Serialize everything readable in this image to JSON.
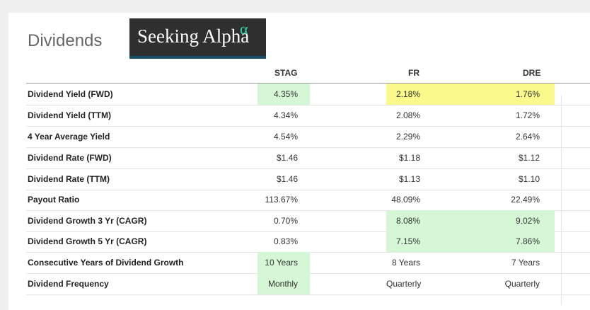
{
  "title": "Dividends",
  "logo": {
    "text": "Seeking Alpha",
    "symbol": "α"
  },
  "columns": [
    "STAG",
    "FR",
    "DRE"
  ],
  "colors": {
    "green_highlight": "#d6f7d6",
    "yellow_highlight": "#fafa8c"
  },
  "rows": [
    {
      "label": "Dividend Yield (FWD)",
      "values": [
        "4.35%",
        "2.18%",
        "1.76%"
      ]
    },
    {
      "label": "Dividend Yield (TTM)",
      "values": [
        "4.34%",
        "2.08%",
        "1.72%"
      ]
    },
    {
      "label": "4 Year Average Yield",
      "values": [
        "4.54%",
        "2.29%",
        "2.64%"
      ]
    },
    {
      "label": "Dividend Rate (FWD)",
      "values": [
        "$1.46",
        "$1.18",
        "$1.12"
      ]
    },
    {
      "label": "Dividend Rate (TTM)",
      "values": [
        "$1.46",
        "$1.13",
        "$1.10"
      ]
    },
    {
      "label": "Payout Ratio",
      "values": [
        "113.67%",
        "48.09%",
        "22.49%"
      ]
    },
    {
      "label": "Dividend Growth 3 Yr (CAGR)",
      "values": [
        "0.70%",
        "8.08%",
        "9.02%"
      ]
    },
    {
      "label": "Dividend Growth 5 Yr (CAGR)",
      "values": [
        "0.83%",
        "7.15%",
        "7.86%"
      ]
    },
    {
      "label": "Consecutive Years of Dividend Growth",
      "values": [
        "10 Years",
        "8 Years",
        "7 Years"
      ]
    },
    {
      "label": "Dividend Frequency",
      "values": [
        "Monthly",
        "Quarterly",
        "Quarterly"
      ]
    }
  ]
}
